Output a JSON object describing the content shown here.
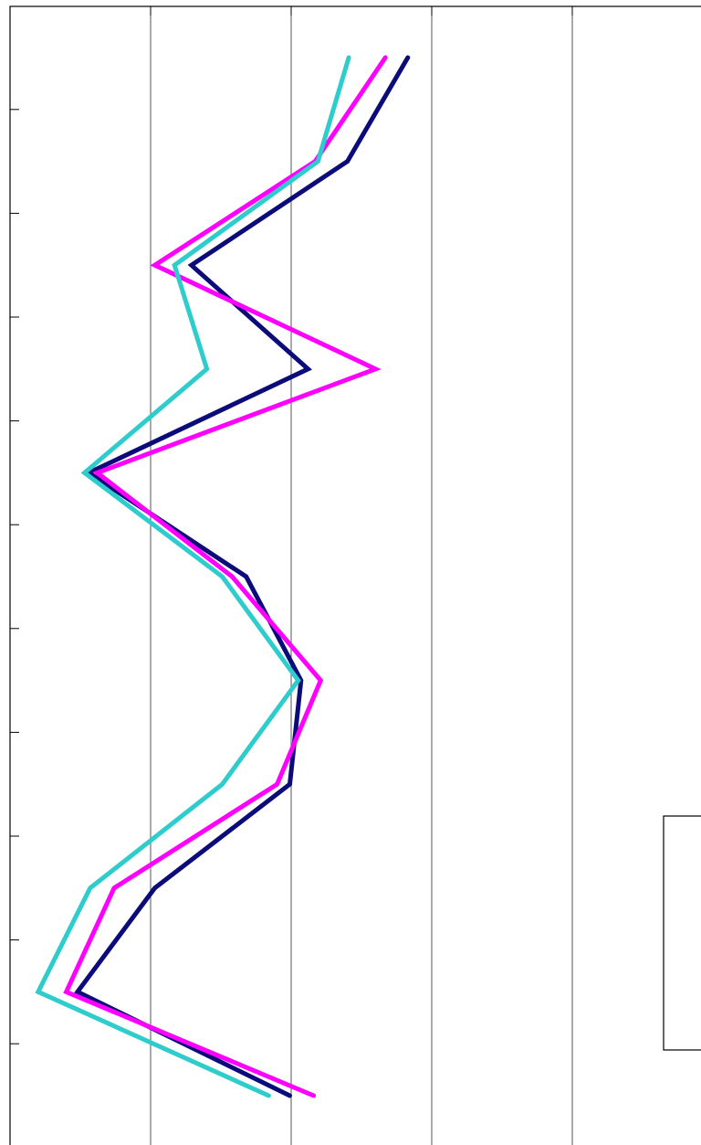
{
  "chart_data": {
    "type": "line",
    "orientation": "vertical",
    "title": "",
    "xlabel": "",
    "ylabel": "",
    "grid": "vertical",
    "legend": "bottom-right",
    "colors": {
      "series1": "#0b0b7a",
      "series2": "#ff00ff",
      "series3": "#2ecccc"
    },
    "xlim": [
      0,
      5
    ],
    "ylim": [
      0,
      11
    ],
    "y": [
      10.5,
      9.5,
      8.5,
      7.5,
      6.5,
      5.5,
      4.5,
      3.5,
      2.5,
      1.5,
      0.5
    ],
    "series": [
      {
        "color": "#0b0b7a",
        "values": [
          2.83,
          2.4,
          1.29,
          2.12,
          0.56,
          1.68,
          2.07,
          1.99,
          1.03,
          0.48,
          1.99
        ]
      },
      {
        "color": "#ff00ff",
        "values": [
          2.67,
          2.17,
          1.03,
          2.6,
          0.62,
          1.58,
          2.21,
          1.9,
          0.74,
          0.4,
          2.16
        ]
      },
      {
        "color": "#2ecccc",
        "values": [
          2.41,
          2.19,
          1.17,
          1.4,
          0.53,
          1.51,
          2.05,
          1.51,
          0.57,
          0.2,
          1.84
        ]
      }
    ]
  }
}
